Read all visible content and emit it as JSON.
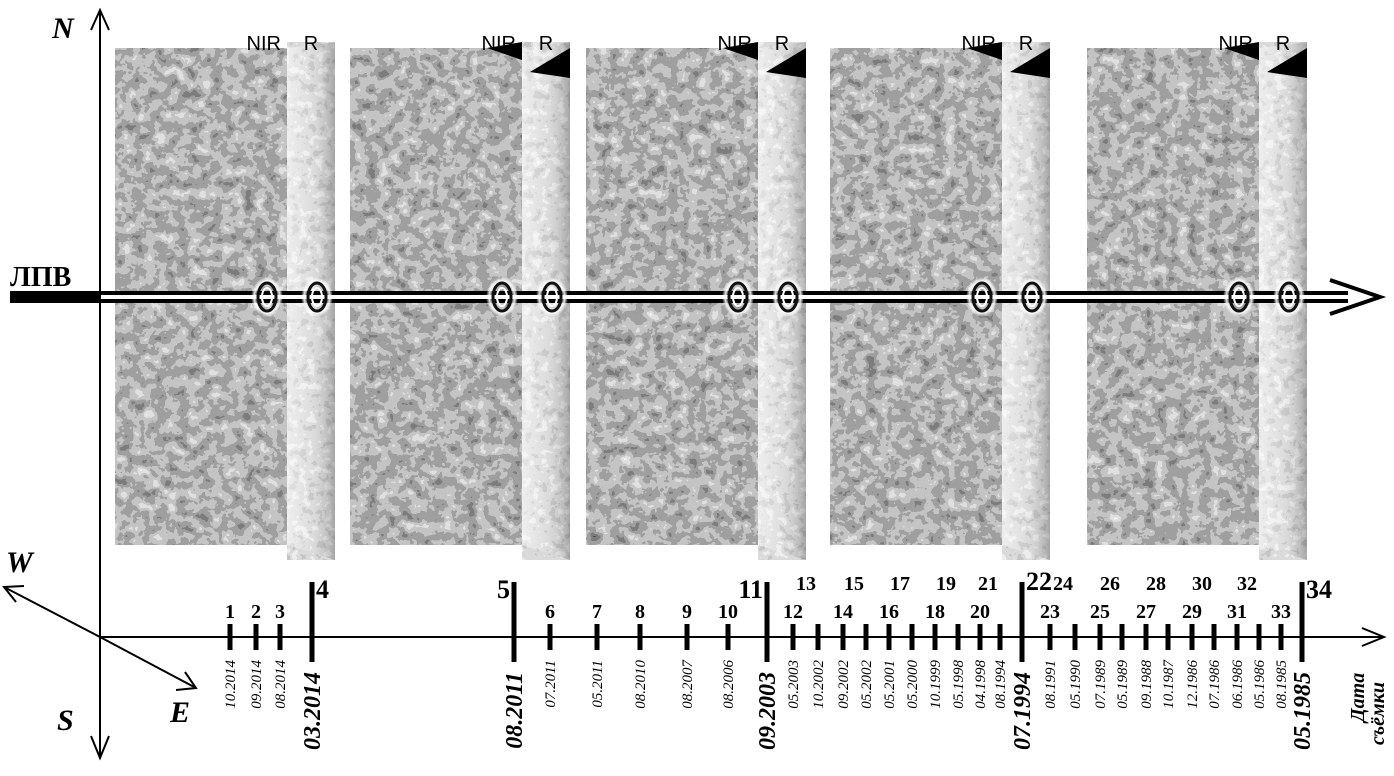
{
  "compass": {
    "north": "N",
    "south": "S",
    "west": "W",
    "east": "E"
  },
  "lpv_label": "ЛПВ",
  "bands": {
    "nir": "NIR",
    "r": "R"
  },
  "scene_count": 5,
  "time_axis": {
    "title_line1": "Дата",
    "title_line2": "съёмки",
    "ticks": [
      {
        "n": "1",
        "date": "10.2014",
        "major": false
      },
      {
        "n": "2",
        "date": "09.2014",
        "major": false
      },
      {
        "n": "3",
        "date": "08.2014",
        "major": false
      },
      {
        "n": "4",
        "date": "03.2014",
        "major": true
      },
      {
        "n": "5",
        "date": "08.2011",
        "major": true
      },
      {
        "n": "6",
        "date": "07.2011",
        "major": false
      },
      {
        "n": "7",
        "date": "05.2011",
        "major": false
      },
      {
        "n": "8",
        "date": "08.2010",
        "major": false
      },
      {
        "n": "9",
        "date": "08.2007",
        "major": false
      },
      {
        "n": "10",
        "date": "08.2006",
        "major": false
      },
      {
        "n": "11",
        "date": "09.2003",
        "major": true
      },
      {
        "n": "12",
        "date": "05.2003",
        "major": false
      },
      {
        "n": "13",
        "date": "10.2002",
        "major": false
      },
      {
        "n": "14",
        "date": "09.2002",
        "major": false
      },
      {
        "n": "15",
        "date": "05.2002",
        "major": false
      },
      {
        "n": "16",
        "date": "05.2001",
        "major": false
      },
      {
        "n": "17",
        "date": "05.2000",
        "major": false
      },
      {
        "n": "18",
        "date": "10.1999",
        "major": false
      },
      {
        "n": "19",
        "date": "05.1998",
        "major": false
      },
      {
        "n": "20",
        "date": "04.1998",
        "major": false
      },
      {
        "n": "21",
        "date": "08.1994",
        "major": false
      },
      {
        "n": "22",
        "date": "07.1994",
        "major": true
      },
      {
        "n": "23",
        "date": "08.1991",
        "major": false
      },
      {
        "n": "24",
        "date": "05.1990",
        "major": false
      },
      {
        "n": "25",
        "date": "07.1989",
        "major": false
      },
      {
        "n": "26",
        "date": "05.1989",
        "major": false
      },
      {
        "n": "27",
        "date": "09.1988",
        "major": false
      },
      {
        "n": "28",
        "date": "10.1987",
        "major": false
      },
      {
        "n": "29",
        "date": "12.1986",
        "major": false
      },
      {
        "n": "30",
        "date": "07.1986",
        "major": false
      },
      {
        "n": "31",
        "date": "06.1986",
        "major": false
      },
      {
        "n": "32",
        "date": "05.1986",
        "major": false
      },
      {
        "n": "33",
        "date": "08.1985",
        "major": false
      },
      {
        "n": "34",
        "date": "05.1985",
        "major": true
      }
    ]
  }
}
